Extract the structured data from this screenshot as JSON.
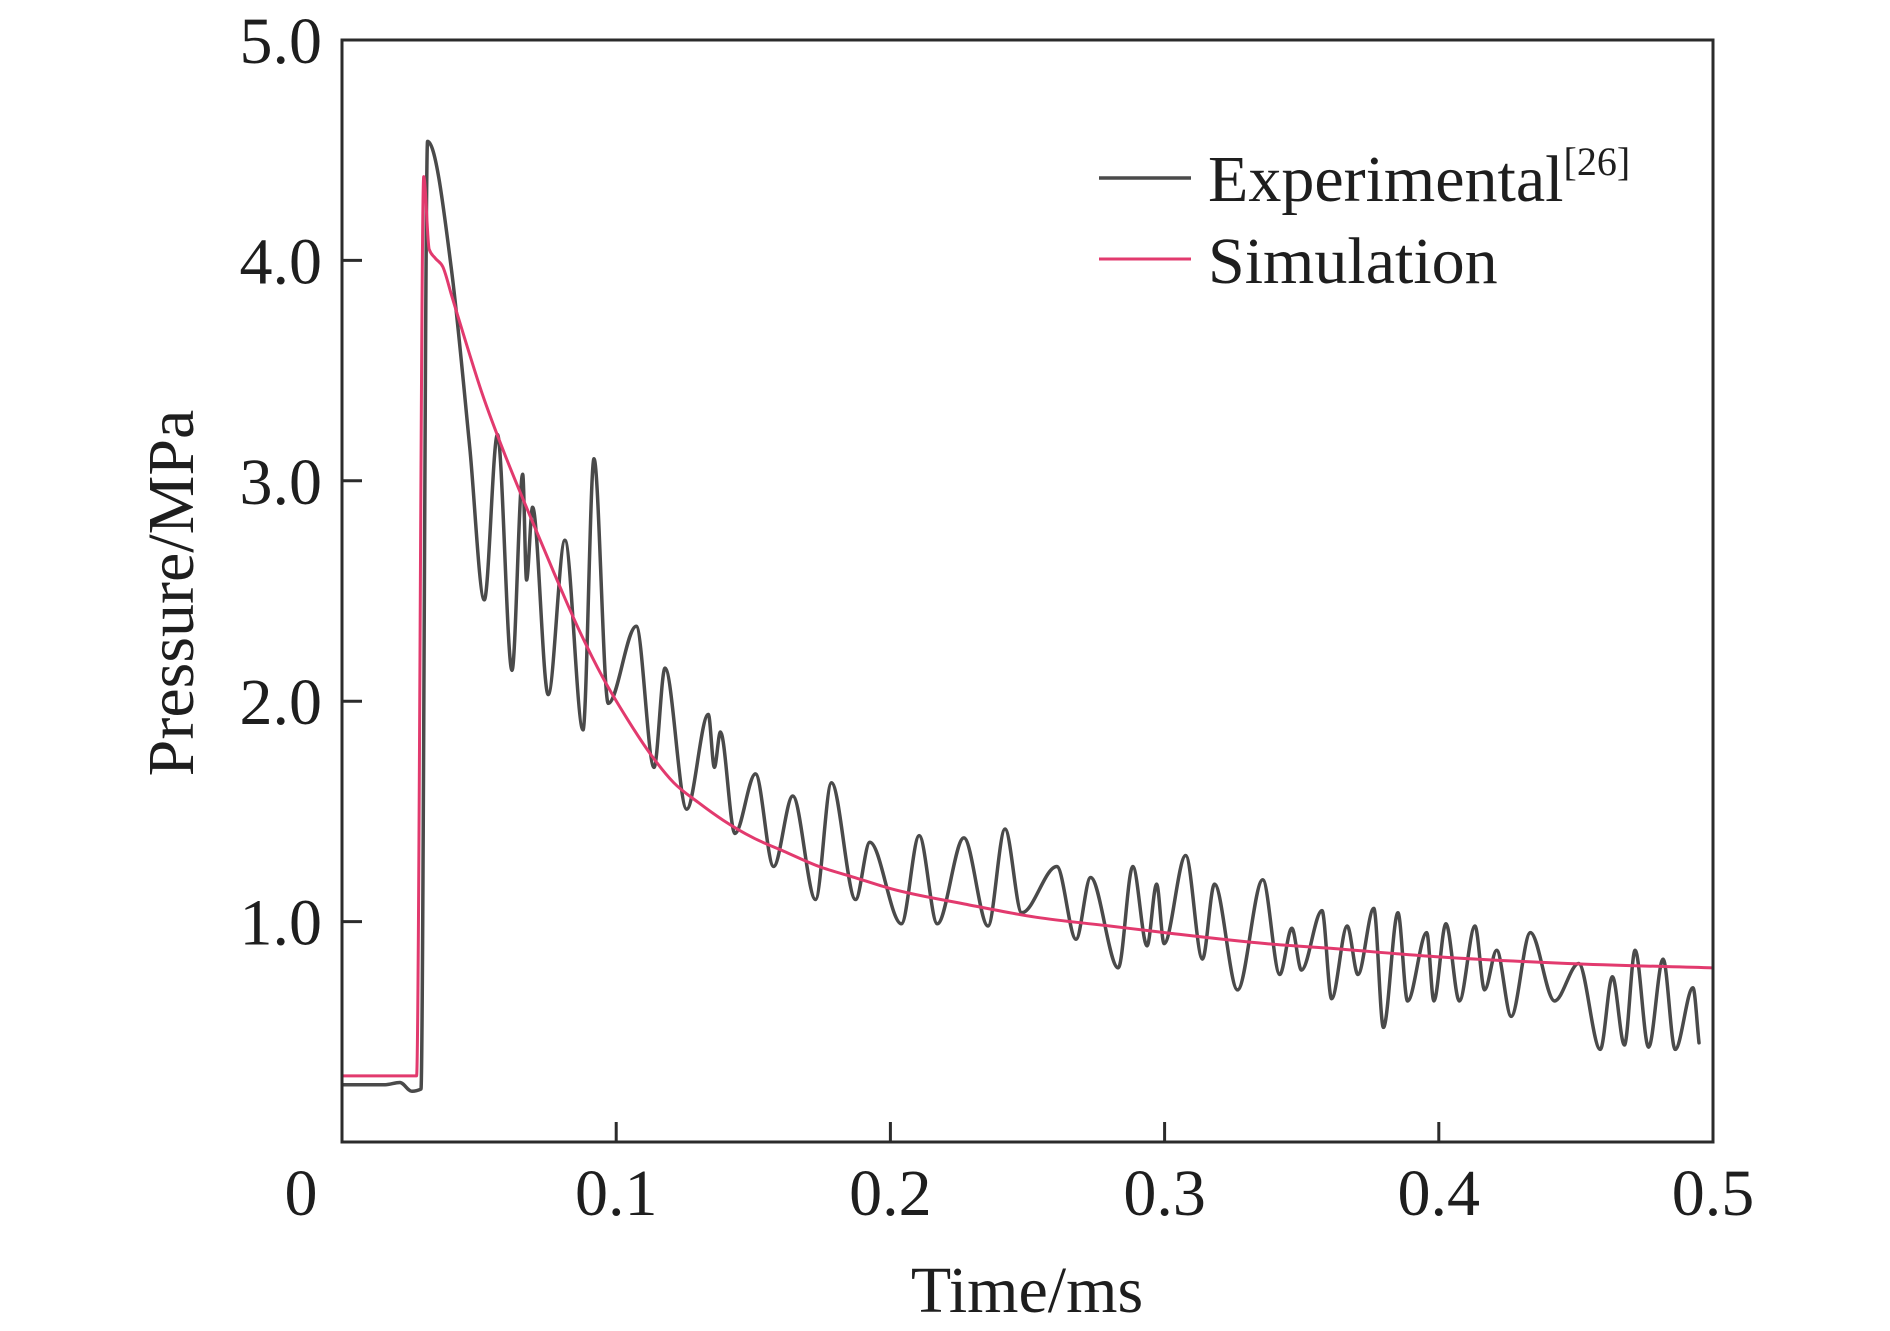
{
  "chart_data": {
    "type": "line",
    "xlabel": "Time/ms",
    "ylabel": "Pressure/MPa",
    "xlim": [
      0,
      0.5
    ],
    "ylim": [
      0,
      5
    ],
    "grid": false,
    "legend_position": "top-right",
    "x_ticks": [
      {
        "value": 0,
        "label": "0"
      },
      {
        "value": 0.1,
        "label": "0.1"
      },
      {
        "value": 0.2,
        "label": "0.2"
      },
      {
        "value": 0.3,
        "label": "0.3"
      },
      {
        "value": 0.4,
        "label": "0.4"
      },
      {
        "value": 0.5,
        "label": "0.5"
      }
    ],
    "y_ticks": [
      {
        "value": 1,
        "label": "1.0"
      },
      {
        "value": 2,
        "label": "2.0"
      },
      {
        "value": 3,
        "label": "3.0"
      },
      {
        "value": 4,
        "label": "4.0"
      },
      {
        "value": 5,
        "label": "5.0"
      }
    ],
    "series": [
      {
        "name": "Experimental",
        "ref": "[26]",
        "color": "#4a4a4a",
        "points": [
          [
            0,
            0.26
          ],
          [
            0.0158,
            0.26
          ],
          [
            0.0211,
            0.27
          ],
          [
            0.0255,
            0.23
          ],
          [
            0.0288,
            0.24
          ],
          [
            0.0312,
            4.54
          ],
          [
            0.04,
            3.95
          ],
          [
            0.0466,
            3.15
          ],
          [
            0.0519,
            2.46
          ],
          [
            0.0567,
            3.21
          ],
          [
            0.062,
            2.14
          ],
          [
            0.0659,
            3.03
          ],
          [
            0.0673,
            2.55
          ],
          [
            0.0695,
            2.88
          ],
          [
            0.0752,
            2.03
          ],
          [
            0.0813,
            2.73
          ],
          [
            0.0879,
            1.87
          ],
          [
            0.0919,
            3.1
          ],
          [
            0.0971,
            1.99
          ],
          [
            0.1073,
            2.34
          ],
          [
            0.1138,
            1.7
          ],
          [
            0.1178,
            2.15
          ],
          [
            0.1257,
            1.51
          ],
          [
            0.1336,
            1.94
          ],
          [
            0.1358,
            1.7
          ],
          [
            0.138,
            1.86
          ],
          [
            0.1433,
            1.4
          ],
          [
            0.1508,
            1.67
          ],
          [
            0.1574,
            1.25
          ],
          [
            0.1644,
            1.57
          ],
          [
            0.1727,
            1.1
          ],
          [
            0.1785,
            1.63
          ],
          [
            0.1873,
            1.1
          ],
          [
            0.1925,
            1.36
          ],
          [
            0.204,
            0.99
          ],
          [
            0.2105,
            1.39
          ],
          [
            0.2171,
            0.99
          ],
          [
            0.2268,
            1.38
          ],
          [
            0.2356,
            0.98
          ],
          [
            0.2418,
            1.42
          ],
          [
            0.2479,
            1.04
          ],
          [
            0.2607,
            1.25
          ],
          [
            0.2677,
            0.92
          ],
          [
            0.273,
            1.2
          ],
          [
            0.2831,
            0.79
          ],
          [
            0.2884,
            1.25
          ],
          [
            0.2936,
            0.89
          ],
          [
            0.2971,
            1.17
          ],
          [
            0.2998,
            0.9
          ],
          [
            0.3077,
            1.3
          ],
          [
            0.3138,
            0.83
          ],
          [
            0.3182,
            1.17
          ],
          [
            0.3266,
            0.69
          ],
          [
            0.3358,
            1.19
          ],
          [
            0.342,
            0.76
          ],
          [
            0.3464,
            0.97
          ],
          [
            0.3499,
            0.78
          ],
          [
            0.3574,
            1.05
          ],
          [
            0.3609,
            0.65
          ],
          [
            0.3666,
            0.98
          ],
          [
            0.3705,
            0.76
          ],
          [
            0.3763,
            1.06
          ],
          [
            0.3798,
            0.52
          ],
          [
            0.3851,
            1.04
          ],
          [
            0.3886,
            0.64
          ],
          [
            0.3956,
            0.95
          ],
          [
            0.3982,
            0.64
          ],
          [
            0.4026,
            0.99
          ],
          [
            0.4075,
            0.64
          ],
          [
            0.4132,
            0.98
          ],
          [
            0.4167,
            0.69
          ],
          [
            0.4211,
            0.87
          ],
          [
            0.4264,
            0.57
          ],
          [
            0.4334,
            0.95
          ],
          [
            0.4422,
            0.64
          ],
          [
            0.451,
            0.81
          ],
          [
            0.4589,
            0.42
          ],
          [
            0.4633,
            0.75
          ],
          [
            0.4677,
            0.44
          ],
          [
            0.4716,
            0.87
          ],
          [
            0.4765,
            0.43
          ],
          [
            0.4818,
            0.83
          ],
          [
            0.4862,
            0.42
          ],
          [
            0.4927,
            0.7
          ],
          [
            0.4949,
            0.45
          ]
        ]
      },
      {
        "name": "Simulation",
        "color": "#e23a6e",
        "points": [
          [
            0,
            0.3
          ],
          [
            0.0272,
            0.3
          ],
          [
            0.0298,
            4.38
          ],
          [
            0.0318,
            4.05
          ],
          [
            0.034,
            4.01
          ],
          [
            0.0368,
            3.97
          ],
          [
            0.04,
            3.84
          ],
          [
            0.0444,
            3.66
          ],
          [
            0.051,
            3.4
          ],
          [
            0.06,
            3.1
          ],
          [
            0.0686,
            2.84
          ],
          [
            0.0774,
            2.58
          ],
          [
            0.0862,
            2.33
          ],
          [
            0.095,
            2.11
          ],
          [
            0.104,
            1.92
          ],
          [
            0.1125,
            1.76
          ],
          [
            0.121,
            1.63
          ],
          [
            0.13,
            1.54
          ],
          [
            0.139,
            1.46
          ],
          [
            0.15,
            1.38
          ],
          [
            0.161,
            1.32
          ],
          [
            0.174,
            1.25
          ],
          [
            0.187,
            1.2
          ],
          [
            0.2,
            1.15
          ],
          [
            0.227,
            1.08
          ],
          [
            0.253,
            1.02
          ],
          [
            0.28,
            0.98
          ],
          [
            0.3,
            0.95
          ],
          [
            0.337,
            0.9
          ],
          [
            0.359,
            0.88
          ],
          [
            0.4,
            0.84
          ],
          [
            0.447,
            0.81
          ],
          [
            0.5,
            0.79
          ]
        ]
      }
    ]
  }
}
